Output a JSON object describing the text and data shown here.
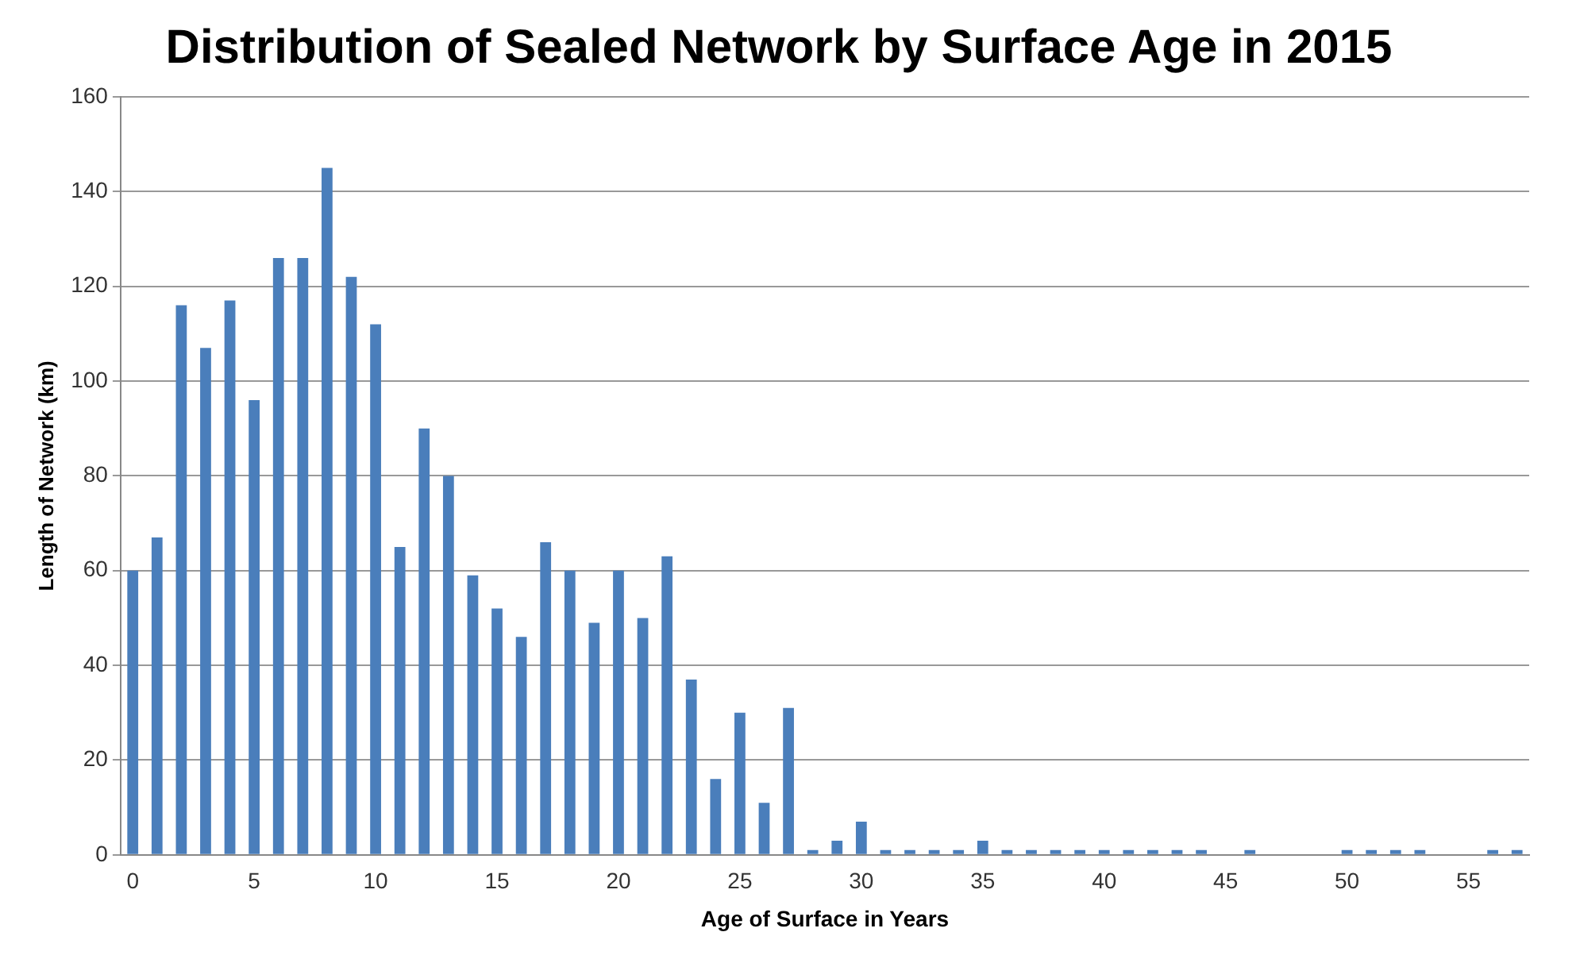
{
  "chart_data": {
    "type": "bar",
    "title": "Distribution of Sealed Network by Surface Age in 2015",
    "xlabel": "Age of Surface in Years",
    "ylabel": "Length of Network (km)",
    "categories": [
      "0",
      null,
      null,
      null,
      null,
      "5",
      null,
      null,
      null,
      null,
      "10",
      null,
      null,
      null,
      null,
      "15",
      null,
      null,
      null,
      null,
      "20",
      null,
      null,
      null,
      null,
      "25",
      null,
      null,
      null,
      null,
      "30",
      null,
      null,
      null,
      null,
      "35",
      null,
      null,
      null,
      null,
      "40",
      null,
      null,
      null,
      null,
      "45",
      null,
      null,
      null,
      null,
      "50",
      null,
      null,
      null,
      null,
      "55",
      null,
      null
    ],
    "values": [
      60,
      67,
      116,
      107,
      117,
      96,
      126,
      126,
      145,
      122,
      112,
      65,
      90,
      80,
      59,
      52,
      46,
      66,
      60,
      49,
      60,
      50,
      63,
      37,
      16,
      30,
      11,
      31,
      1,
      3,
      7,
      1,
      1,
      1,
      1,
      3,
      1,
      1,
      1,
      1,
      1,
      1,
      1,
      1,
      1,
      0,
      1,
      0,
      0,
      0,
      1,
      1,
      1,
      1,
      0,
      0,
      1,
      1
    ],
    "color": "#4a7ebb",
    "ylim": [
      0,
      160
    ],
    "yticks": [
      0,
      20,
      40,
      60,
      80,
      100,
      120,
      140,
      160
    ],
    "grid": "y",
    "legend": false
  }
}
